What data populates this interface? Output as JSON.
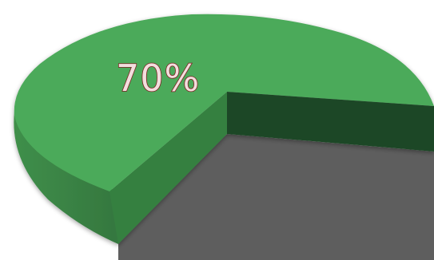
{
  "chart_data": {
    "type": "pie",
    "title": "",
    "slices": [
      {
        "label": "",
        "value": 70,
        "color": "#4caa5a"
      },
      {
        "label": "",
        "value": 30,
        "color": "#5d5d5d"
      }
    ],
    "data_labels": [
      "70%"
    ],
    "style": "3d-exploded"
  }
}
